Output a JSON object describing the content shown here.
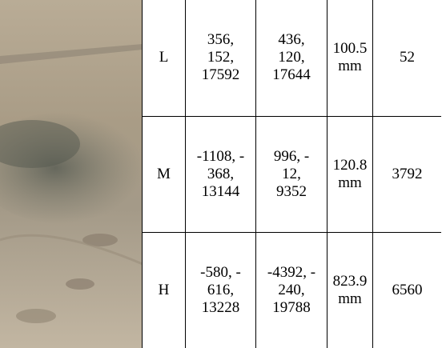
{
  "table": {
    "rows": [
      [
        "L",
        [
          "356,",
          "152,",
          "17592"
        ],
        [
          "436,",
          "120,",
          "17644"
        ],
        [
          "100.5",
          "mm"
        ],
        [
          "52"
        ]
      ],
      [
        "M",
        [
          "-1108, -",
          "368,",
          "13144"
        ],
        [
          "996, -",
          "12,",
          "9352"
        ],
        [
          "120.8",
          "mm"
        ],
        [
          "3792"
        ]
      ],
      [
        "H",
        [
          "-580, -",
          "616,",
          "13228"
        ],
        [
          "-4392, -",
          "240,",
          "19788"
        ],
        [
          "823.9",
          "mm"
        ],
        [
          "6560"
        ]
      ]
    ]
  }
}
